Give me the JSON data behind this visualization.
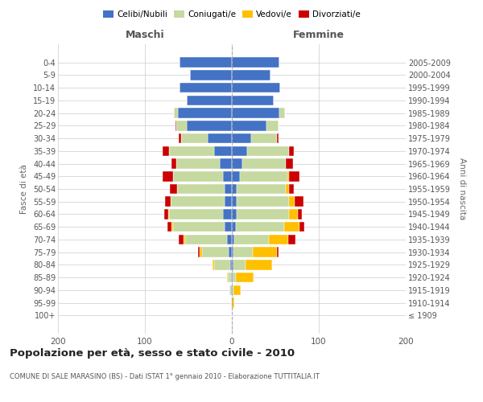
{
  "age_groups": [
    "100+",
    "95-99",
    "90-94",
    "85-89",
    "80-84",
    "75-79",
    "70-74",
    "65-69",
    "60-64",
    "55-59",
    "50-54",
    "45-49",
    "40-44",
    "35-39",
    "30-34",
    "25-29",
    "20-24",
    "15-19",
    "10-14",
    "5-9",
    "0-4"
  ],
  "birth_years": [
    "≤ 1909",
    "1910-1914",
    "1915-1919",
    "1920-1924",
    "1925-1929",
    "1930-1934",
    "1935-1939",
    "1940-1944",
    "1945-1949",
    "1950-1954",
    "1955-1959",
    "1960-1964",
    "1965-1969",
    "1970-1974",
    "1975-1979",
    "1980-1984",
    "1985-1989",
    "1990-1994",
    "1995-1999",
    "2000-2004",
    "2005-2009"
  ],
  "males": {
    "celibi": [
      0,
      0,
      1,
      1,
      2,
      4,
      6,
      8,
      10,
      8,
      8,
      10,
      14,
      20,
      28,
      52,
      62,
      52,
      60,
      48,
      60
    ],
    "coniugati": [
      0,
      1,
      2,
      4,
      18,
      30,
      48,
      60,
      62,
      62,
      55,
      58,
      50,
      52,
      30,
      12,
      5,
      0,
      0,
      0,
      0
    ],
    "vedovi": [
      0,
      0,
      0,
      1,
      2,
      3,
      2,
      1,
      1,
      0,
      0,
      0,
      0,
      0,
      0,
      0,
      0,
      0,
      0,
      0,
      0
    ],
    "divorziati": [
      0,
      0,
      0,
      0,
      0,
      2,
      5,
      5,
      5,
      7,
      8,
      12,
      5,
      8,
      3,
      1,
      0,
      0,
      0,
      0,
      0
    ]
  },
  "females": {
    "nubili": [
      0,
      0,
      1,
      1,
      2,
      2,
      3,
      5,
      6,
      6,
      6,
      9,
      12,
      18,
      22,
      40,
      55,
      48,
      56,
      44,
      55
    ],
    "coniugate": [
      0,
      0,
      1,
      4,
      14,
      22,
      40,
      55,
      60,
      60,
      56,
      55,
      50,
      48,
      30,
      14,
      6,
      0,
      0,
      0,
      0
    ],
    "vedove": [
      0,
      3,
      8,
      20,
      30,
      28,
      22,
      18,
      10,
      6,
      4,
      2,
      0,
      0,
      0,
      0,
      0,
      0,
      0,
      0,
      0
    ],
    "divorziate": [
      0,
      0,
      0,
      0,
      0,
      2,
      8,
      5,
      5,
      10,
      5,
      12,
      8,
      5,
      2,
      0,
      0,
      0,
      0,
      0,
      0
    ]
  },
  "colors": {
    "celibi_nubili": "#4472c4",
    "coniugati": "#c5d9a0",
    "vedovi": "#ffc000",
    "divorziati": "#cc0000"
  },
  "title": "Popolazione per età, sesso e stato civile - 2010",
  "subtitle": "COMUNE DI SALE MARASINO (BS) - Dati ISTAT 1° gennaio 2010 - Elaborazione TUTTITALIA.IT",
  "ylabel_left": "Fasce di età",
  "ylabel_right": "Anni di nascita",
  "xlabel_left": "Maschi",
  "xlabel_right": "Femmine",
  "xlim": 200,
  "background_color": "#ffffff",
  "grid_color": "#cccccc"
}
